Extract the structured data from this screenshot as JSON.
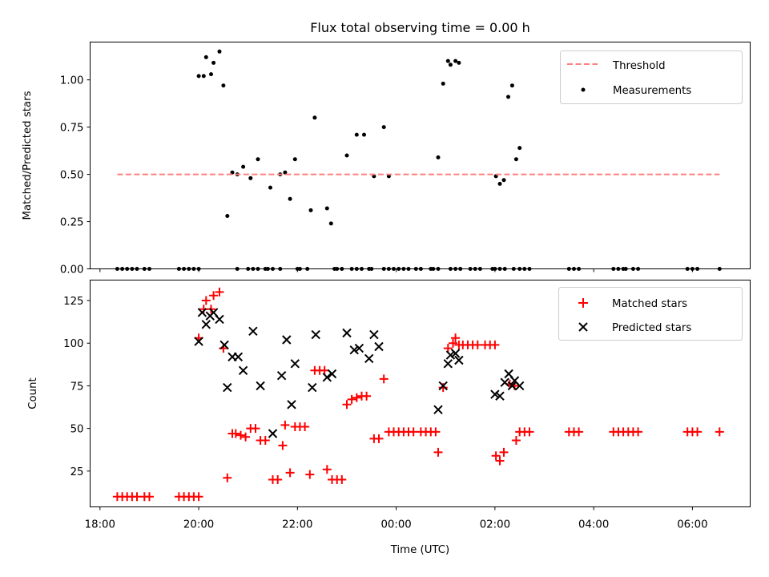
{
  "chart_data": [
    {
      "type": "scatter",
      "title": "Flux total observing time = 0.00 h",
      "xlabel": "",
      "ylabel": "Matched/Predicted stars",
      "xlim_hours": [
        17.8,
        31.17
      ],
      "ylim": [
        0,
        1.2
      ],
      "yticks": [
        "0.00",
        "0.25",
        "0.50",
        "0.75",
        "1.00"
      ],
      "legend_position": "upper right",
      "legend": [
        "Threshold",
        "Measurements"
      ],
      "threshold": {
        "name": "Threshold",
        "value": 0.5,
        "x_start_hours": 18.35,
        "x_end_hours": 30.55,
        "color": "#ff7f7f",
        "style": "dashed"
      },
      "series": [
        {
          "name": "Measurements",
          "color": "#000000",
          "points_hours": [
            [
              18.35,
              0
            ],
            [
              18.45,
              0
            ],
            [
              18.55,
              0
            ],
            [
              18.65,
              0
            ],
            [
              18.75,
              0
            ],
            [
              18.9,
              0
            ],
            [
              19.0,
              0
            ],
            [
              19.6,
              0
            ],
            [
              19.7,
              0
            ],
            [
              19.8,
              0
            ],
            [
              19.9,
              0
            ],
            [
              20.0,
              0
            ],
            [
              20.0,
              1.02
            ],
            [
              20.1,
              1.02
            ],
            [
              20.15,
              1.12
            ],
            [
              20.25,
              1.03
            ],
            [
              20.3,
              1.09
            ],
            [
              20.42,
              1.15
            ],
            [
              20.5,
              0.97
            ],
            [
              20.58,
              0.28
            ],
            [
              20.68,
              0.51
            ],
            [
              20.78,
              0.5
            ],
            [
              20.9,
              0.54
            ],
            [
              21.05,
              0.48
            ],
            [
              21.2,
              0.58
            ],
            [
              21.45,
              0.43
            ],
            [
              21.65,
              0.5
            ],
            [
              21.75,
              0.51
            ],
            [
              21.85,
              0.37
            ],
            [
              21.95,
              0.58
            ],
            [
              22.27,
              0.31
            ],
            [
              22.35,
              0.8
            ],
            [
              22.6,
              0.32
            ],
            [
              22.68,
              0.24
            ],
            [
              20.78,
              0
            ],
            [
              21.0,
              0
            ],
            [
              21.1,
              0
            ],
            [
              21.2,
              0
            ],
            [
              21.35,
              0
            ],
            [
              21.4,
              0
            ],
            [
              21.5,
              0
            ],
            [
              21.65,
              0
            ],
            [
              22.0,
              0
            ],
            [
              22.05,
              0
            ],
            [
              22.2,
              0
            ],
            [
              22.75,
              0
            ],
            [
              22.8,
              0
            ],
            [
              22.9,
              0
            ],
            [
              23.1,
              0
            ],
            [
              23.2,
              0
            ],
            [
              23.3,
              0
            ],
            [
              23.45,
              0
            ],
            [
              23.5,
              0
            ],
            [
              23.0,
              0.6
            ],
            [
              23.2,
              0.71
            ],
            [
              23.35,
              0.71
            ],
            [
              23.55,
              0.49
            ],
            [
              23.75,
              0.75
            ],
            [
              23.85,
              0.49
            ],
            [
              23.75,
              0
            ],
            [
              23.85,
              0
            ],
            [
              23.95,
              0
            ],
            [
              24.05,
              0
            ],
            [
              24.15,
              0
            ],
            [
              24.25,
              0
            ],
            [
              24.4,
              0
            ],
            [
              24.5,
              0
            ],
            [
              24.7,
              0
            ],
            [
              24.75,
              0
            ],
            [
              24.85,
              0
            ],
            [
              24.85,
              0.59
            ],
            [
              24.95,
              0.98
            ],
            [
              25.05,
              1.1
            ],
            [
              25.1,
              1.08
            ],
            [
              25.2,
              1.1
            ],
            [
              25.27,
              1.09
            ],
            [
              25.1,
              0
            ],
            [
              25.2,
              0
            ],
            [
              25.3,
              0
            ],
            [
              25.5,
              0
            ],
            [
              25.6,
              0
            ],
            [
              25.7,
              0
            ],
            [
              25.95,
              0
            ],
            [
              26.0,
              0
            ],
            [
              26.1,
              0
            ],
            [
              26.2,
              0
            ],
            [
              26.02,
              0.49
            ],
            [
              26.1,
              0.45
            ],
            [
              26.18,
              0.47
            ],
            [
              26.27,
              0.91
            ],
            [
              26.35,
              0.97
            ],
            [
              26.43,
              0.58
            ],
            [
              26.5,
              0.64
            ],
            [
              26.38,
              0
            ],
            [
              26.5,
              0
            ],
            [
              26.6,
              0
            ],
            [
              26.7,
              0
            ],
            [
              27.5,
              0
            ],
            [
              27.6,
              0
            ],
            [
              27.7,
              0
            ],
            [
              28.4,
              0
            ],
            [
              28.5,
              0
            ],
            [
              28.6,
              0
            ],
            [
              28.65,
              0
            ],
            [
              28.8,
              0
            ],
            [
              28.9,
              0
            ],
            [
              29.9,
              0
            ],
            [
              30.0,
              0
            ],
            [
              30.1,
              0
            ],
            [
              30.55,
              0
            ]
          ]
        }
      ]
    },
    {
      "type": "scatter",
      "title": "",
      "xlabel": "Time (UTC)",
      "ylabel": "Count",
      "xlim_hours": [
        17.8,
        31.17
      ],
      "ylim": [
        4,
        137
      ],
      "yticks": [
        "25",
        "50",
        "75",
        "100",
        "125"
      ],
      "xticks": [
        "18:00",
        "20:00",
        "22:00",
        "00:00",
        "02:00",
        "04:00",
        "06:00"
      ],
      "xticks_hours": [
        18,
        20,
        22,
        24,
        26,
        28,
        30
      ],
      "legend_position": "upper right",
      "legend": [
        "Matched stars",
        "Predicted stars"
      ],
      "series": [
        {
          "name": "Matched stars",
          "marker": "+",
          "color": "#ff0000",
          "points_hours": [
            [
              18.35,
              10
            ],
            [
              18.45,
              10
            ],
            [
              18.55,
              10
            ],
            [
              18.65,
              10
            ],
            [
              18.75,
              10
            ],
            [
              18.9,
              10
            ],
            [
              19.0,
              10
            ],
            [
              19.6,
              10
            ],
            [
              19.7,
              10
            ],
            [
              19.8,
              10
            ],
            [
              19.9,
              10
            ],
            [
              20.0,
              10
            ],
            [
              20.0,
              103
            ],
            [
              20.1,
              120
            ],
            [
              20.15,
              125
            ],
            [
              20.25,
              120
            ],
            [
              20.3,
              128
            ],
            [
              20.42,
              130
            ],
            [
              20.5,
              97
            ],
            [
              20.58,
              21
            ],
            [
              20.68,
              47
            ],
            [
              20.75,
              47
            ],
            [
              20.85,
              46
            ],
            [
              20.95,
              45
            ],
            [
              21.05,
              50
            ],
            [
              21.15,
              50
            ],
            [
              21.25,
              43
            ],
            [
              21.35,
              43
            ],
            [
              21.5,
              20
            ],
            [
              21.6,
              20
            ],
            [
              21.7,
              40
            ],
            [
              21.75,
              52
            ],
            [
              21.85,
              24
            ],
            [
              21.95,
              51
            ],
            [
              22.05,
              51
            ],
            [
              22.15,
              51
            ],
            [
              22.25,
              23
            ],
            [
              22.35,
              84
            ],
            [
              22.45,
              84
            ],
            [
              22.55,
              84
            ],
            [
              22.6,
              26
            ],
            [
              22.7,
              20
            ],
            [
              22.8,
              20
            ],
            [
              22.9,
              20
            ],
            [
              23.0,
              64
            ],
            [
              23.1,
              67
            ],
            [
              23.2,
              68
            ],
            [
              23.3,
              69
            ],
            [
              23.4,
              69
            ],
            [
              23.55,
              44
            ],
            [
              23.65,
              44
            ],
            [
              23.75,
              79
            ],
            [
              23.85,
              48
            ],
            [
              23.95,
              48
            ],
            [
              24.05,
              48
            ],
            [
              24.15,
              48
            ],
            [
              24.25,
              48
            ],
            [
              24.35,
              48
            ],
            [
              24.5,
              48
            ],
            [
              24.6,
              48
            ],
            [
              24.7,
              48
            ],
            [
              24.8,
              48
            ],
            [
              24.85,
              36
            ],
            [
              24.95,
              74
            ],
            [
              25.05,
              97
            ],
            [
              25.15,
              100
            ],
            [
              25.2,
              103
            ],
            [
              25.27,
              99
            ],
            [
              25.35,
              99
            ],
            [
              25.45,
              99
            ],
            [
              25.55,
              99
            ],
            [
              25.65,
              99
            ],
            [
              25.8,
              99
            ],
            [
              25.9,
              99
            ],
            [
              26.0,
              99
            ],
            [
              26.02,
              34
            ],
            [
              26.1,
              31
            ],
            [
              26.18,
              36
            ],
            [
              26.3,
              76
            ],
            [
              26.4,
              75
            ],
            [
              26.43,
              43
            ],
            [
              26.5,
              48
            ],
            [
              26.6,
              48
            ],
            [
              26.7,
              48
            ],
            [
              27.5,
              48
            ],
            [
              27.6,
              48
            ],
            [
              27.7,
              48
            ],
            [
              28.4,
              48
            ],
            [
              28.5,
              48
            ],
            [
              28.6,
              48
            ],
            [
              28.7,
              48
            ],
            [
              28.8,
              48
            ],
            [
              28.9,
              48
            ],
            [
              29.9,
              48
            ],
            [
              30.0,
              48
            ],
            [
              30.1,
              48
            ],
            [
              30.55,
              48
            ]
          ]
        },
        {
          "name": "Predicted stars",
          "marker": "x",
          "color": "#000000",
          "points_hours": [
            [
              20.0,
              101
            ],
            [
              20.07,
              118
            ],
            [
              20.15,
              111
            ],
            [
              20.23,
              116
            ],
            [
              20.3,
              118
            ],
            [
              20.42,
              114
            ],
            [
              20.52,
              99
            ],
            [
              20.58,
              74
            ],
            [
              20.68,
              92
            ],
            [
              20.8,
              92
            ],
            [
              20.9,
              84
            ],
            [
              21.1,
              107
            ],
            [
              21.25,
              75
            ],
            [
              21.5,
              47
            ],
            [
              21.68,
              81
            ],
            [
              21.78,
              102
            ],
            [
              21.88,
              64
            ],
            [
              21.95,
              88
            ],
            [
              22.3,
              74
            ],
            [
              22.37,
              105
            ],
            [
              22.6,
              80
            ],
            [
              22.7,
              82
            ],
            [
              23.0,
              106
            ],
            [
              23.15,
              96
            ],
            [
              23.25,
              97
            ],
            [
              23.45,
              91
            ],
            [
              23.55,
              105
            ],
            [
              23.65,
              98
            ],
            [
              24.85,
              61
            ],
            [
              24.95,
              75
            ],
            [
              25.05,
              88
            ],
            [
              25.1,
              93
            ],
            [
              25.2,
              94
            ],
            [
              25.27,
              90
            ],
            [
              26.0,
              70
            ],
            [
              26.1,
              69
            ],
            [
              26.2,
              77
            ],
            [
              26.28,
              82
            ],
            [
              26.35,
              75
            ],
            [
              26.4,
              78
            ],
            [
              26.5,
              75
            ]
          ]
        }
      ]
    }
  ]
}
